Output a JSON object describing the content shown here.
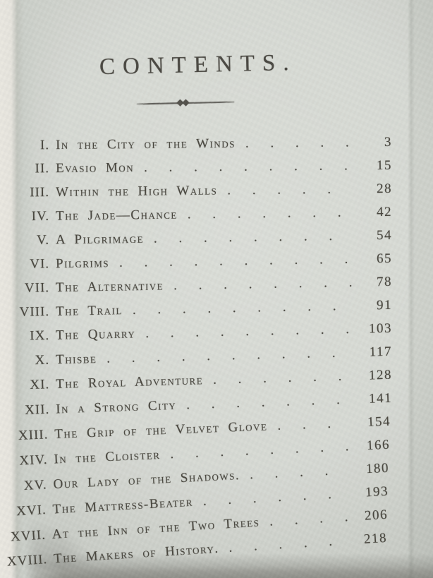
{
  "page": {
    "title": "CONTENTS.",
    "leader_dots": ". . . . . . . . . . . . . . . . . . . . . . . ."
  },
  "toc": {
    "rows": [
      {
        "numeral": "I.",
        "title": "In the City of the Winds",
        "page": "3"
      },
      {
        "numeral": "II.",
        "title": "Evasio Mon",
        "page": "15"
      },
      {
        "numeral": "III.",
        "title": "Within the High Walls",
        "page": "28"
      },
      {
        "numeral": "IV.",
        "title": "The Jade—Chance",
        "page": "42"
      },
      {
        "numeral": "V.",
        "title": "A Pilgrimage",
        "page": "54"
      },
      {
        "numeral": "VI.",
        "title": "Pilgrims",
        "page": "65"
      },
      {
        "numeral": "VII.",
        "title": "The Alternative",
        "page": "78"
      },
      {
        "numeral": "VIII.",
        "title": "The Trail",
        "page": "91"
      },
      {
        "numeral": "IX.",
        "title": "The Quarry",
        "page": "103"
      },
      {
        "numeral": "X.",
        "title": "Thisbe",
        "page": "117"
      },
      {
        "numeral": "XI.",
        "title": "The Royal Adventure",
        "page": "128"
      },
      {
        "numeral": "XII.",
        "title": "In a Strong City",
        "page": "141"
      },
      {
        "numeral": "XIII.",
        "title": "The Grip of the Velvet Glove",
        "page": "154"
      },
      {
        "numeral": "XIV.",
        "title": "In the Cloister",
        "page": "166"
      },
      {
        "numeral": "XV.",
        "title": "Our Lady of the Shadows.",
        "page": "180"
      },
      {
        "numeral": "XVI.",
        "title": "The Mattress-Beater",
        "page": "193"
      },
      {
        "numeral": "XVII.",
        "title": "At the Inn of the Two Trees",
        "page": "206"
      },
      {
        "numeral": "XVIII.",
        "title": "The Makers of History.",
        "page": "218"
      }
    ]
  }
}
